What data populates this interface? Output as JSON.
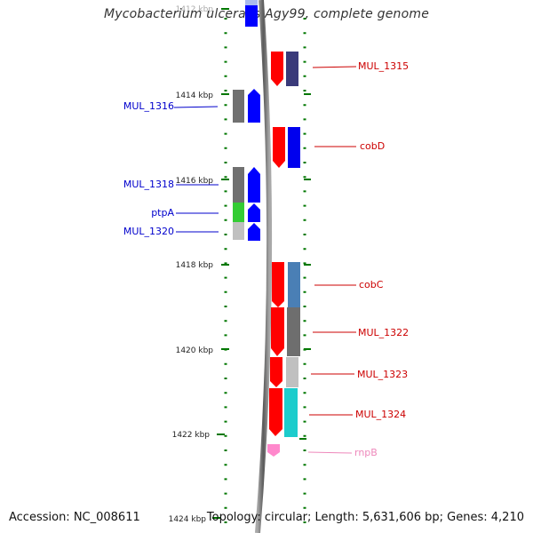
{
  "title": "Mycobacterium ulcerans Agy99, complete genome",
  "footer": {
    "accession": "Accession: NC_008611",
    "summary": "Topology: circular; Length: 5,631,606 bp; Genes: 4,210"
  },
  "ticks": [
    "1412 kbp",
    "1414 kbp",
    "1416 kbp",
    "1418 kbp",
    "1420 kbp",
    "1422 kbp",
    "1424 kbp"
  ],
  "labels": {
    "left": [
      "MUL_1316",
      "MUL_1318",
      "ptpA",
      "MUL_1320"
    ],
    "right": [
      "MUL_1315",
      "cobD",
      "cobC",
      "MUL_1322",
      "MUL_1323",
      "MUL_1324",
      "rnpB"
    ]
  },
  "colors": {
    "forward_strand": "#0000ff",
    "reverse_strand": "#ff0000",
    "left_label": "#0000cc",
    "right_label": "#cc0000",
    "rna_label": "#ee88bb",
    "tick": "#007700"
  }
}
